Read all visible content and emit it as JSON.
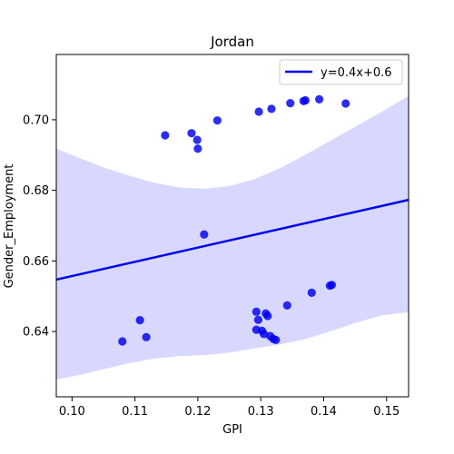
{
  "chart_data": {
    "type": "scatter",
    "title": "Jordan",
    "xlabel": "GPI",
    "ylabel": "Gender_Employment",
    "xlim": [
      0.0975,
      0.1535
    ],
    "ylim": [
      0.6215,
      0.7185
    ],
    "xticks": [
      "0.10",
      "0.11",
      "0.12",
      "0.13",
      "0.14",
      "0.15"
    ],
    "yticks": [
      "0.64",
      "0.66",
      "0.68",
      "0.70"
    ],
    "grid": false,
    "legend_position": "top-right",
    "point_color": "#0000ee",
    "line_color": "#0000ee",
    "band_color": "#d8d8ff",
    "series": [
      {
        "name": "",
        "points": [
          [
            0.108,
            0.6372
          ],
          [
            0.1108,
            0.6432
          ],
          [
            0.1118,
            0.6384
          ],
          [
            0.1148,
            0.6956
          ],
          [
            0.119,
            0.6962
          ],
          [
            0.1199,
            0.6943
          ],
          [
            0.12,
            0.6918
          ],
          [
            0.121,
            0.6675
          ],
          [
            0.1231,
            0.6998
          ],
          [
            0.1293,
            0.6456
          ],
          [
            0.1293,
            0.6405
          ],
          [
            0.1296,
            0.6433
          ],
          [
            0.1297,
            0.7023
          ],
          [
            0.1302,
            0.6402
          ],
          [
            0.1305,
            0.6393
          ],
          [
            0.1308,
            0.6451
          ],
          [
            0.1311,
            0.6444
          ],
          [
            0.1315,
            0.6387
          ],
          [
            0.1317,
            0.7031
          ],
          [
            0.132,
            0.6379
          ],
          [
            0.1324,
            0.6376
          ],
          [
            0.1342,
            0.6474
          ],
          [
            0.1347,
            0.7047
          ],
          [
            0.1368,
            0.7053
          ],
          [
            0.1371,
            0.7055
          ],
          [
            0.1381,
            0.651
          ],
          [
            0.1393,
            0.7058
          ],
          [
            0.141,
            0.653
          ],
          [
            0.1413,
            0.6532
          ],
          [
            0.1435,
            0.7046
          ]
        ]
      }
    ],
    "regression": {
      "name": "y=0.4x+0.6",
      "x": [
        0.0975,
        0.1535
      ],
      "y": [
        0.6547,
        0.6773
      ]
    },
    "confidence_band": {
      "x": [
        0.0975,
        0.101,
        0.105,
        0.109,
        0.113,
        0.117,
        0.121,
        0.125,
        0.129,
        0.133,
        0.137,
        0.141,
        0.145,
        0.149,
        0.1535
      ],
      "upper": [
        0.6918,
        0.6893,
        0.6865,
        0.6842,
        0.6822,
        0.6808,
        0.6805,
        0.6812,
        0.6832,
        0.6862,
        0.69,
        0.694,
        0.698,
        0.702,
        0.7068
      ],
      "lower": [
        0.6264,
        0.6276,
        0.6293,
        0.631,
        0.6323,
        0.633,
        0.6333,
        0.634,
        0.6352,
        0.6363,
        0.6378,
        0.64,
        0.6424,
        0.6445,
        0.6455
      ]
    }
  }
}
